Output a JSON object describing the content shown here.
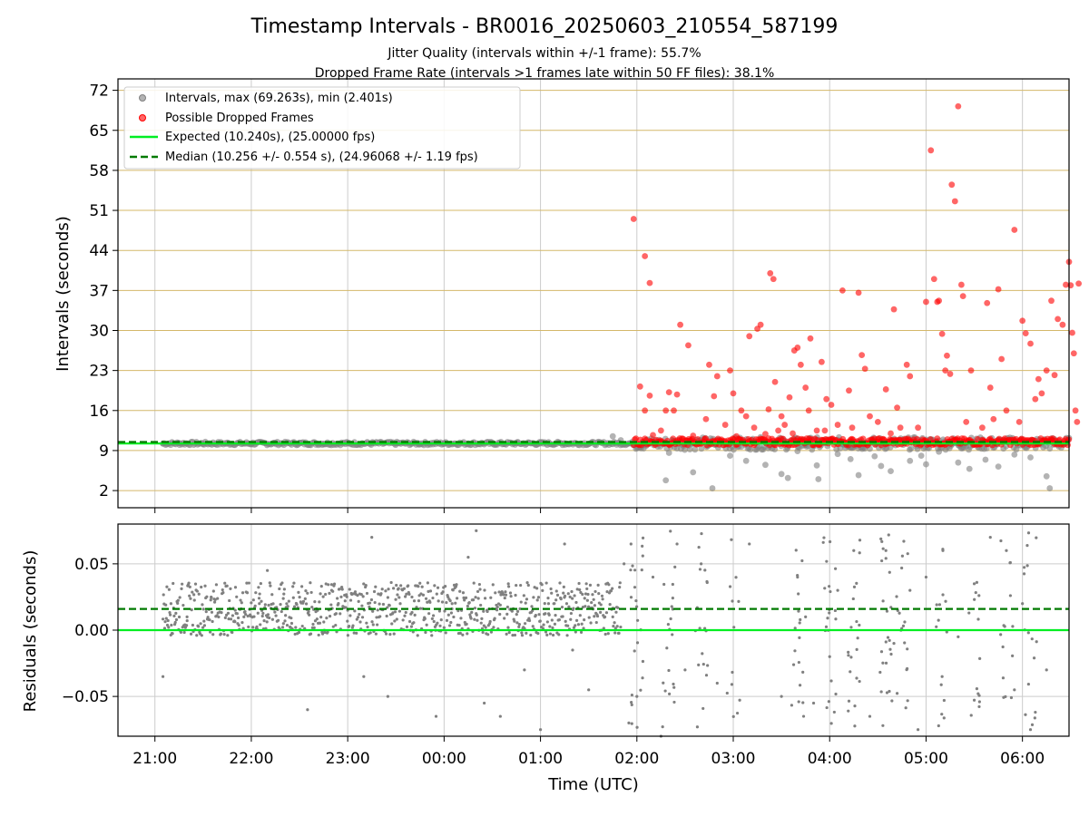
{
  "figure": {
    "title": "Timestamp Intervals - BR0016_20250603_210554_587199",
    "subtitle_1": "Jitter Quality (intervals within +/-1 frame): 55.7%",
    "subtitle_2": "Dropped Frame Rate (intervals >1 frames late within 50 FF files): 38.1%",
    "xlabel": "Time (UTC)"
  },
  "colors": {
    "intervals": "#808080",
    "dropped": "#ff0000",
    "expected": "#00ee22",
    "median": "#007a00",
    "grid_major": "#d4b86a",
    "grid_minor": "#cccccc"
  },
  "chart_data": [
    {
      "type": "scatter",
      "ylabel": "Intervals (seconds)",
      "ylim": [
        -1,
        74
      ],
      "yticks": [
        2,
        9,
        16,
        23,
        30,
        37,
        44,
        51,
        58,
        65,
        72
      ],
      "ytick_labels": [
        "2",
        "9",
        "16",
        "23",
        "30",
        "37",
        "44",
        "51",
        "58",
        "65",
        "72"
      ],
      "x_range": [
        "20:37",
        "06:29"
      ],
      "xticks": [
        "21:00",
        "22:00",
        "23:00",
        "00:00",
        "01:00",
        "02:00",
        "03:00",
        "04:00",
        "05:00",
        "06:00"
      ],
      "legend_position": "upper left",
      "legend": [
        {
          "label": "Intervals, max (69.263s), min (2.401s)",
          "marker": "point",
          "color": "#808080"
        },
        {
          "label": "Possible Dropped Frames",
          "marker": "point",
          "color": "#ff0000"
        },
        {
          "label": "Expected (10.240s), (25.00000 fps)",
          "marker": "line",
          "color": "#00ee22"
        },
        {
          "label": "Median (10.256 +/- 0.554 s), (24.96068 +/- 1.19 fps)",
          "marker": "dashed",
          "color": "#007a00"
        }
      ],
      "expected_value": 10.24,
      "median_value": 10.256,
      "series": [
        {
          "name": "Intervals, max (69.263s), min (2.401s)",
          "points": [
            [
              "21:05",
              10.2
            ],
            [
              "21:15",
              10.3
            ],
            [
              "21:30",
              10.2
            ],
            [
              "21:45",
              10.25
            ],
            [
              "22:00",
              10.2
            ],
            [
              "22:15",
              10.3
            ],
            [
              "22:30",
              10.25
            ],
            [
              "22:45",
              10.2
            ],
            [
              "23:00",
              10.25
            ],
            [
              "23:15",
              10.3
            ],
            [
              "23:30",
              10.25
            ],
            [
              "23:45",
              10.2
            ],
            [
              "00:00",
              10.3
            ],
            [
              "00:15",
              10.25
            ],
            [
              "00:30",
              10.2
            ],
            [
              "00:45",
              10.3
            ],
            [
              "01:00",
              10.25
            ],
            [
              "01:15",
              10.3
            ],
            [
              "01:30",
              10.2
            ],
            [
              "01:45",
              11.5
            ],
            [
              "01:50",
              10.8
            ],
            [
              "02:02",
              9.6
            ],
            [
              "02:18",
              3.8
            ],
            [
              "02:20",
              8.6
            ],
            [
              "02:35",
              5.2
            ],
            [
              "02:47",
              2.4
            ],
            [
              "02:58",
              8.1
            ],
            [
              "03:08",
              7.2
            ],
            [
              "03:20",
              6.5
            ],
            [
              "03:30",
              4.9
            ],
            [
              "03:34",
              4.2
            ],
            [
              "03:40",
              8.9
            ],
            [
              "03:52",
              6.4
            ],
            [
              "03:53",
              4.0
            ],
            [
              "04:05",
              8.4
            ],
            [
              "04:13",
              7.5
            ],
            [
              "04:18",
              4.7
            ],
            [
              "04:28",
              8.0
            ],
            [
              "04:32",
              6.3
            ],
            [
              "04:38",
              5.4
            ],
            [
              "04:50",
              7.2
            ],
            [
              "04:57",
              8.1
            ],
            [
              "05:00",
              6.6
            ],
            [
              "05:08",
              8.8
            ],
            [
              "05:20",
              6.9
            ],
            [
              "05:27",
              5.8
            ],
            [
              "05:37",
              7.4
            ],
            [
              "05:45",
              6.2
            ],
            [
              "05:55",
              8.3
            ],
            [
              "06:05",
              7.8
            ],
            [
              "06:15",
              4.5
            ],
            [
              "06:17",
              2.4
            ]
          ]
        },
        {
          "name": "Possible Dropped Frames",
          "points": [
            [
              "01:58",
              49.5
            ],
            [
              "02:02",
              20.2
            ],
            [
              "02:05",
              43.0
            ],
            [
              "02:05",
              16.0
            ],
            [
              "02:08",
              38.3
            ],
            [
              "02:10",
              11.7
            ],
            [
              "02:08",
              18.6
            ],
            [
              "02:15",
              12.5
            ],
            [
              "02:18",
              16.0
            ],
            [
              "02:20",
              19.2
            ],
            [
              "02:23",
              16.0
            ],
            [
              "02:25",
              18.8
            ],
            [
              "02:27",
              31.0
            ],
            [
              "02:32",
              27.4
            ],
            [
              "02:35",
              11.6
            ],
            [
              "02:43",
              14.5
            ],
            [
              "02:45",
              24.0
            ],
            [
              "02:48",
              18.5
            ],
            [
              "02:50",
              22.0
            ],
            [
              "02:55",
              13.5
            ],
            [
              "02:58",
              23.0
            ],
            [
              "03:00",
              19.0
            ],
            [
              "03:02",
              11.5
            ],
            [
              "03:05",
              16.0
            ],
            [
              "03:08",
              15.0
            ],
            [
              "03:10",
              29.0
            ],
            [
              "03:13",
              13.0
            ],
            [
              "03:15",
              30.3
            ],
            [
              "03:17",
              31.0
            ],
            [
              "03:20",
              11.9
            ],
            [
              "03:22",
              16.2
            ],
            [
              "03:23",
              40.0
            ],
            [
              "03:25",
              39.0
            ],
            [
              "03:26",
              21.0
            ],
            [
              "03:28",
              12.5
            ],
            [
              "03:30",
              15.0
            ],
            [
              "03:32",
              13.5
            ],
            [
              "03:35",
              18.3
            ],
            [
              "03:37",
              12.0
            ],
            [
              "03:38",
              26.5
            ],
            [
              "03:40",
              27.0
            ],
            [
              "03:42",
              24.0
            ],
            [
              "03:45",
              20.0
            ],
            [
              "03:47",
              16.0
            ],
            [
              "03:48",
              28.6
            ],
            [
              "03:52",
              12.5
            ],
            [
              "03:55",
              24.5
            ],
            [
              "03:57",
              12.5
            ],
            [
              "03:58",
              18.0
            ],
            [
              "04:01",
              17.0
            ],
            [
              "04:05",
              13.5
            ],
            [
              "04:08",
              37.0
            ],
            [
              "04:12",
              19.5
            ],
            [
              "04:14",
              13.0
            ],
            [
              "04:18",
              36.6
            ],
            [
              "04:20",
              25.7
            ],
            [
              "04:22",
              23.3
            ],
            [
              "04:25",
              15.0
            ],
            [
              "04:30",
              14.0
            ],
            [
              "04:35",
              19.7
            ],
            [
              "04:38",
              12.0
            ],
            [
              "04:40",
              33.7
            ],
            [
              "04:42",
              16.5
            ],
            [
              "04:44",
              13.0
            ],
            [
              "04:48",
              24.0
            ],
            [
              "04:50",
              22.0
            ],
            [
              "04:55",
              13.0
            ],
            [
              "05:00",
              35.0
            ],
            [
              "05:03",
              61.5
            ],
            [
              "05:05",
              39.0
            ],
            [
              "05:07",
              35.0
            ],
            [
              "05:08",
              35.2
            ],
            [
              "05:10",
              29.4
            ],
            [
              "05:12",
              23.0
            ],
            [
              "05:13",
              25.6
            ],
            [
              "05:15",
              22.4
            ],
            [
              "05:16",
              55.5
            ],
            [
              "05:18",
              52.6
            ],
            [
              "05:20",
              69.2
            ],
            [
              "05:22",
              38.0
            ],
            [
              "05:23",
              36.0
            ],
            [
              "05:25",
              14.0
            ],
            [
              "05:28",
              23.0
            ],
            [
              "05:35",
              13.0
            ],
            [
              "05:38",
              34.8
            ],
            [
              "05:40",
              20.0
            ],
            [
              "05:42",
              14.5
            ],
            [
              "05:45",
              37.2
            ],
            [
              "05:47",
              25.0
            ],
            [
              "05:50",
              16.0
            ],
            [
              "05:55",
              47.6
            ],
            [
              "05:58",
              14.0
            ],
            [
              "06:00",
              31.7
            ],
            [
              "06:02",
              29.5
            ],
            [
              "06:05",
              27.7
            ],
            [
              "06:08",
              18.0
            ],
            [
              "06:10",
              21.5
            ],
            [
              "06:12",
              19.0
            ],
            [
              "06:15",
              23.0
            ],
            [
              "06:18",
              35.2
            ],
            [
              "06:20",
              22.2
            ],
            [
              "06:22",
              32.0
            ],
            [
              "06:25",
              31.0
            ],
            [
              "06:27",
              38.0
            ],
            [
              "06:29",
              42.0
            ],
            [
              "06:30",
              37.9
            ],
            [
              "06:31",
              29.6
            ],
            [
              "06:32",
              26.0
            ],
            [
              "06:33",
              16.0
            ],
            [
              "06:34",
              14.0
            ],
            [
              "06:35",
              38.2
            ]
          ]
        },
        {
          "name": "Expected (10.240s), (25.00000 fps)",
          "value": 10.24
        },
        {
          "name": "Median (10.256 +/- 0.554 s), (24.96068 +/- 1.19 fps)",
          "value": 10.256
        }
      ]
    },
    {
      "type": "scatter",
      "ylabel": "Residuals (seconds)",
      "ylim": [
        -0.08,
        0.08
      ],
      "yticks": [
        -0.05,
        0.0,
        0.05
      ],
      "ytick_labels": [
        "−0.05",
        "0.00",
        "0.05"
      ],
      "x_range": [
        "20:37",
        "06:29"
      ],
      "xticks": [
        "21:00",
        "22:00",
        "23:00",
        "00:00",
        "01:00",
        "02:00",
        "03:00",
        "04:00",
        "05:00",
        "06:00"
      ],
      "expected_value": 0.0,
      "median_value": 0.016,
      "series": [
        {
          "name": "Residuals",
          "points": [
            [
              "21:05",
              -0.035
            ],
            [
              "21:10",
              0.02
            ],
            [
              "21:20",
              0.01
            ],
            [
              "21:35",
              0.025
            ],
            [
              "21:50",
              0.015
            ],
            [
              "22:05",
              0.02
            ],
            [
              "22:10",
              0.045
            ],
            [
              "22:20",
              0.005
            ],
            [
              "22:35",
              -0.06
            ],
            [
              "22:50",
              0.03
            ],
            [
              "23:00",
              0.015
            ],
            [
              "23:10",
              -0.035
            ],
            [
              "23:15",
              0.07
            ],
            [
              "23:25",
              -0.05
            ],
            [
              "23:40",
              0.025
            ],
            [
              "23:55",
              -0.065
            ],
            [
              "00:05",
              0.02
            ],
            [
              "00:15",
              0.055
            ],
            [
              "00:20",
              0.075
            ],
            [
              "00:25",
              -0.055
            ],
            [
              "00:35",
              -0.065
            ],
            [
              "00:40",
              0.035
            ],
            [
              "00:50",
              -0.03
            ],
            [
              "01:00",
              -0.075
            ],
            [
              "01:05",
              0.02
            ],
            [
              "01:15",
              0.065
            ],
            [
              "01:20",
              -0.015
            ],
            [
              "01:30",
              -0.045
            ],
            [
              "01:45",
              0.01
            ],
            [
              "01:52",
              0.05
            ],
            [
              "01:55",
              -0.07
            ],
            [
              "02:00",
              -0.05
            ],
            [
              "02:10",
              0.04
            ],
            [
              "02:15",
              -0.08
            ],
            [
              "02:25",
              0.065
            ],
            [
              "02:30",
              -0.03
            ],
            [
              "02:40",
              0.05
            ],
            [
              "02:50",
              -0.04
            ],
            [
              "03:10",
              0.065
            ],
            [
              "03:30",
              -0.05
            ],
            [
              "03:40",
              0.04
            ],
            [
              "03:45",
              0.01
            ],
            [
              "03:50",
              -0.055
            ],
            [
              "04:00",
              -0.02
            ],
            [
              "04:05",
              0.03
            ],
            [
              "04:15",
              0.06
            ],
            [
              "04:25",
              -0.065
            ],
            [
              "04:35",
              0.06
            ],
            [
              "04:40",
              -0.01
            ],
            [
              "04:50",
              0.03
            ],
            [
              "04:55",
              -0.075
            ],
            [
              "05:00",
              0.04
            ],
            [
              "05:10",
              -0.035
            ],
            [
              "05:20",
              -0.005
            ],
            [
              "05:30",
              0.035
            ],
            [
              "05:40",
              0.07
            ],
            [
              "05:50",
              0.06
            ],
            [
              "05:55",
              -0.045
            ],
            [
              "06:00",
              0.02
            ],
            [
              "06:05",
              -0.075
            ],
            [
              "06:15",
              -0.03
            ]
          ]
        },
        {
          "name": "Expected",
          "value": 0.0
        },
        {
          "name": "Median",
          "value": 0.016
        }
      ]
    }
  ]
}
